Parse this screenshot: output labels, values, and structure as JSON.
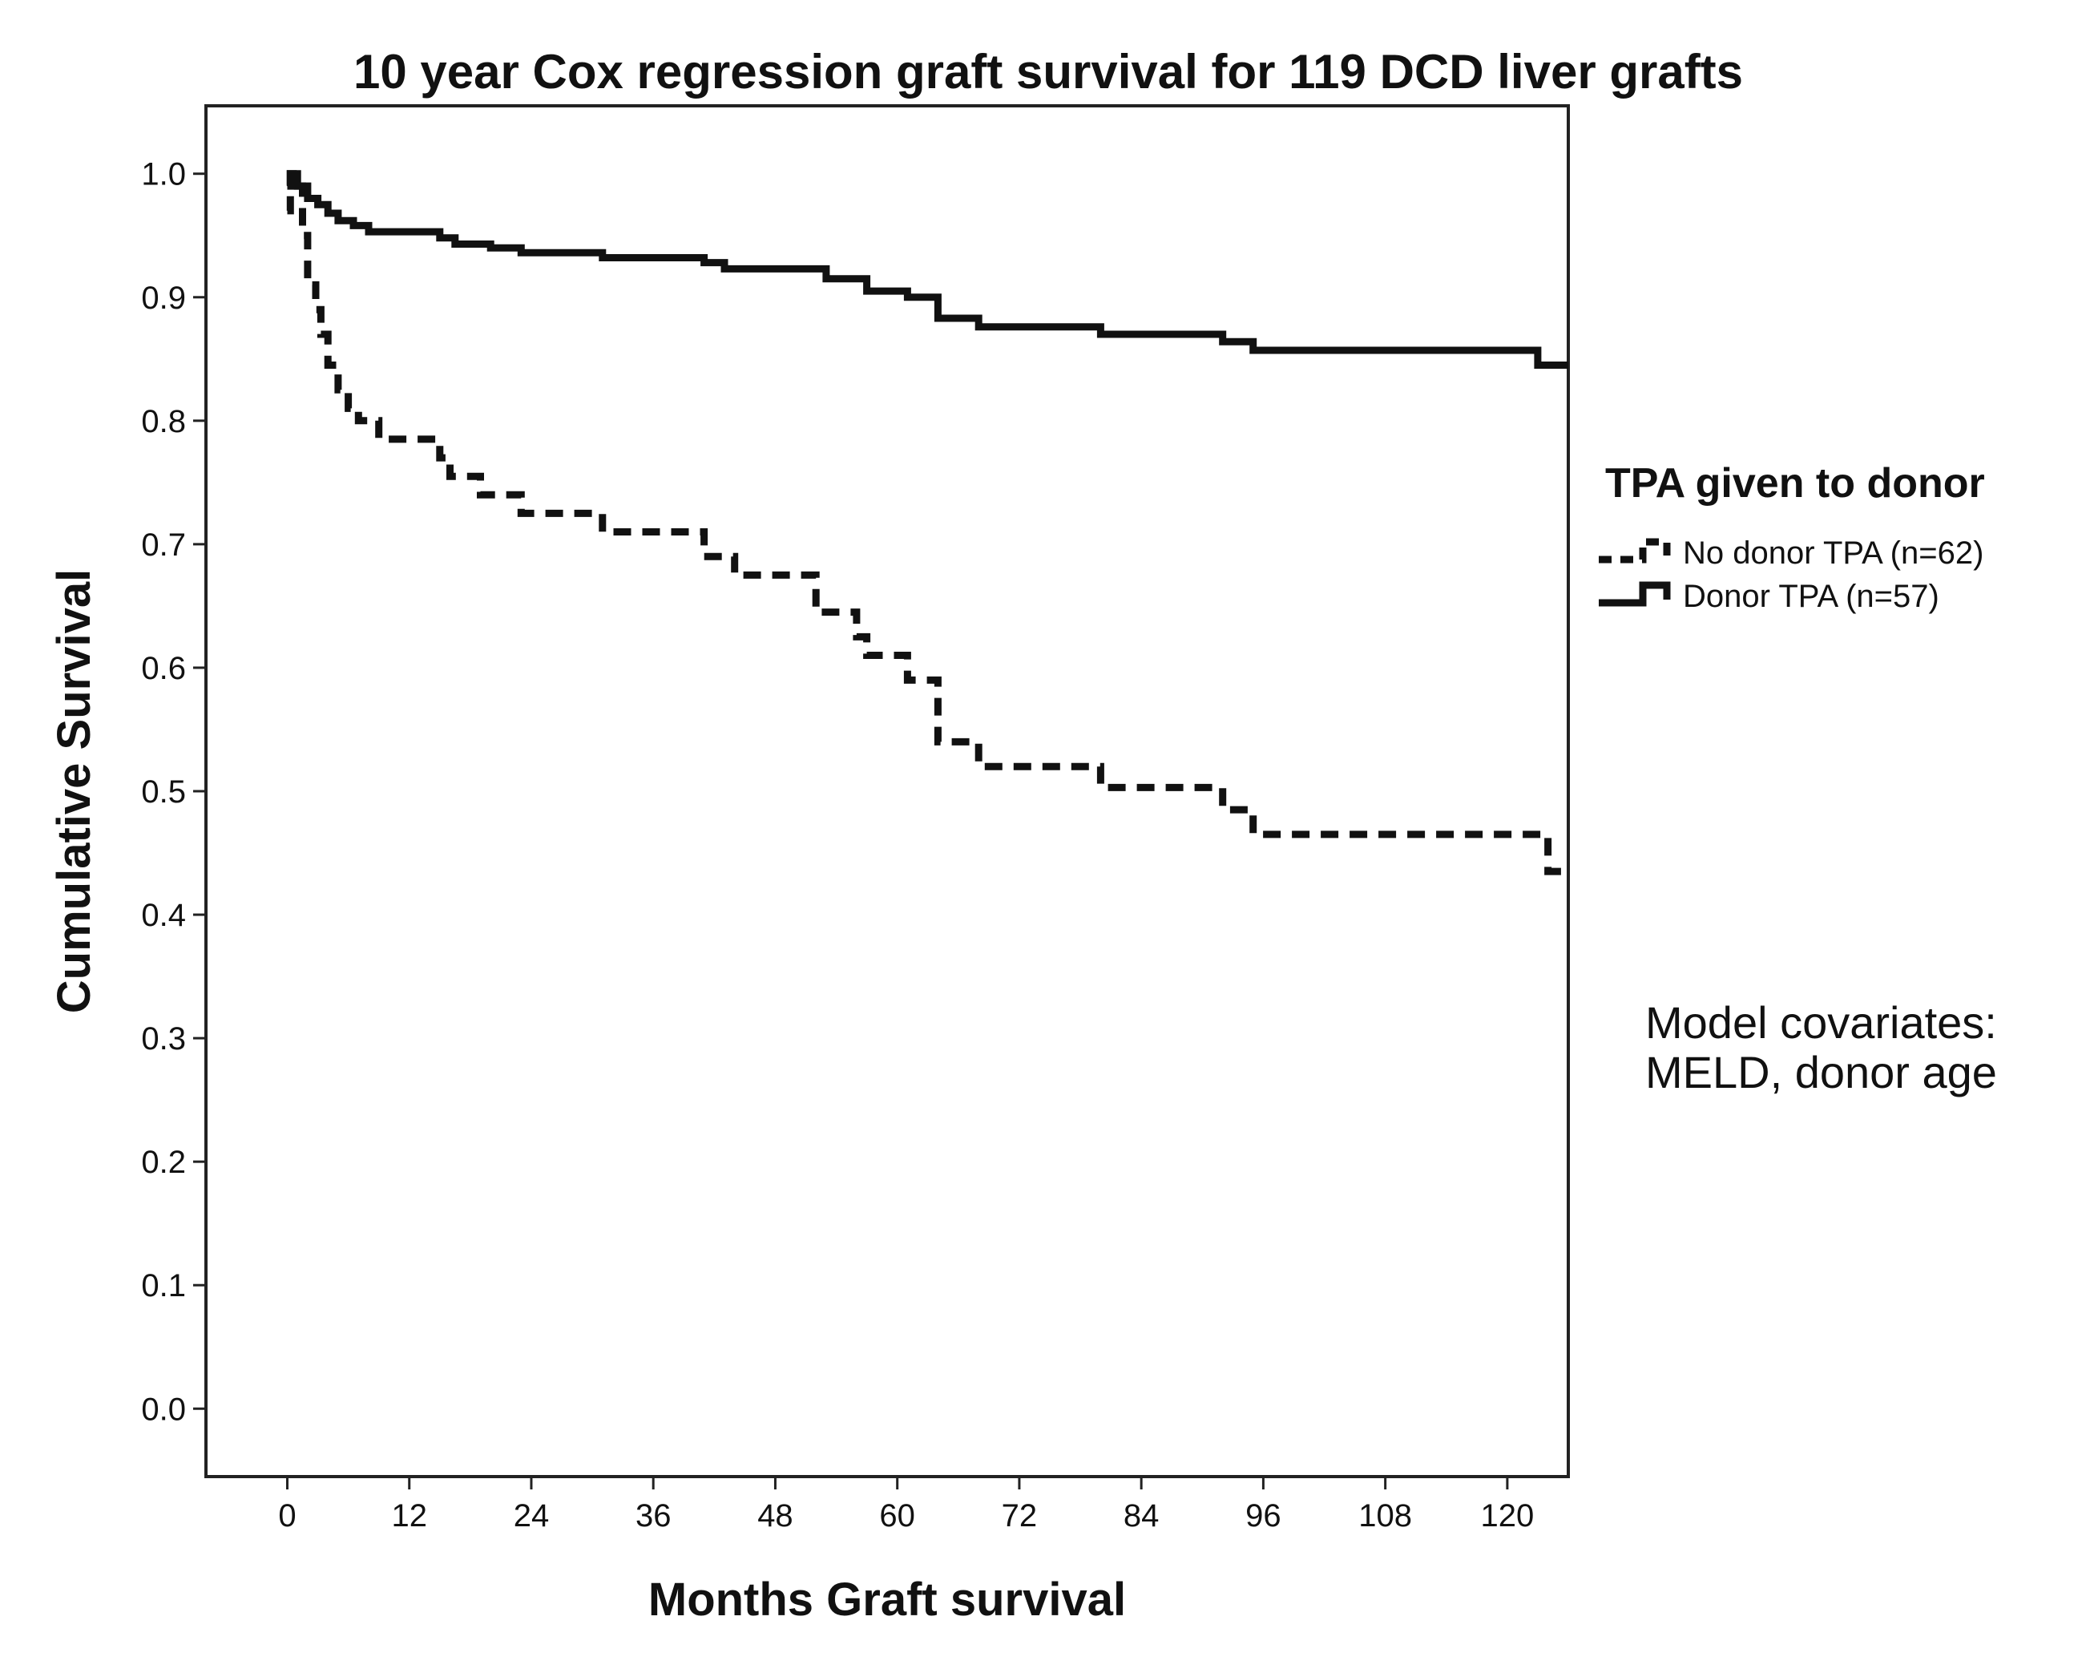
{
  "chart_data": {
    "type": "line",
    "title": "10 year Cox regression graft survival for 119 DCD liver grafts",
    "xlabel": "Months Graft survival",
    "ylabel": "Cumulative Survival",
    "xlim": [
      -8,
      126
    ],
    "ylim": [
      -0.055,
      1.055
    ],
    "xticks": [
      0,
      12,
      24,
      36,
      48,
      60,
      72,
      84,
      96,
      108,
      120
    ],
    "yticks": [
      0.0,
      0.1,
      0.2,
      0.3,
      0.4,
      0.5,
      0.6,
      0.7,
      0.8,
      0.9,
      1.0
    ],
    "ytick_labels": [
      "0.0",
      "0.1",
      "0.2",
      "0.3",
      "0.4",
      "0.5",
      "0.6",
      "0.7",
      "0.8",
      "0.9",
      "1.0"
    ],
    "grid": false,
    "legend": {
      "title": "TPA given to donor",
      "placement": "right"
    },
    "series": [
      {
        "name": "No donor TPA (n=62)",
        "style": "dashed",
        "color": "#111111",
        "steps": [
          [
            0,
            0.97
          ],
          [
            0.3,
            1.0
          ],
          [
            1.0,
            0.99
          ],
          [
            1.5,
            0.95
          ],
          [
            2.0,
            0.91
          ],
          [
            2.8,
            0.89
          ],
          [
            3.3,
            0.87
          ],
          [
            4.0,
            0.845
          ],
          [
            5.0,
            0.825
          ],
          [
            6.0,
            0.81
          ],
          [
            7.0,
            0.8
          ],
          [
            9.0,
            0.785
          ],
          [
            15.0,
            0.77
          ],
          [
            16.0,
            0.755
          ],
          [
            19.0,
            0.74
          ],
          [
            23.0,
            0.725
          ],
          [
            31.0,
            0.71
          ],
          [
            41.0,
            0.69
          ],
          [
            44.0,
            0.675
          ],
          [
            52.0,
            0.645
          ],
          [
            56.0,
            0.625
          ],
          [
            57.0,
            0.61
          ],
          [
            61.0,
            0.59
          ],
          [
            64.0,
            0.54
          ],
          [
            68.0,
            0.52
          ],
          [
            80.0,
            0.503
          ],
          [
            92.0,
            0.485
          ],
          [
            95.0,
            0.465
          ],
          [
            124.0,
            0.435
          ],
          [
            126.0,
            0.435
          ]
        ]
      },
      {
        "name": "Donor TPA (n=57)",
        "style": "solid",
        "color": "#111111",
        "steps": [
          [
            0,
            0.99
          ],
          [
            0.3,
            1.0
          ],
          [
            1.0,
            0.99
          ],
          [
            2.0,
            0.98
          ],
          [
            3.0,
            0.975
          ],
          [
            4.0,
            0.968
          ],
          [
            5.0,
            0.962
          ],
          [
            6.5,
            0.958
          ],
          [
            8.0,
            0.953
          ],
          [
            15.0,
            0.948
          ],
          [
            16.5,
            0.943
          ],
          [
            20.0,
            0.94
          ],
          [
            23.0,
            0.936
          ],
          [
            31.0,
            0.932
          ],
          [
            41.0,
            0.928
          ],
          [
            43.0,
            0.923
          ],
          [
            53.0,
            0.915
          ],
          [
            57.0,
            0.905
          ],
          [
            61.0,
            0.9
          ],
          [
            64.0,
            0.883
          ],
          [
            68.0,
            0.876
          ],
          [
            80.0,
            0.87
          ],
          [
            92.0,
            0.864
          ],
          [
            95.0,
            0.857
          ],
          [
            123.0,
            0.845
          ],
          [
            126.0,
            0.845
          ]
        ]
      }
    ],
    "annotations": [
      "Model covariates:",
      "MELD, donor age"
    ]
  }
}
